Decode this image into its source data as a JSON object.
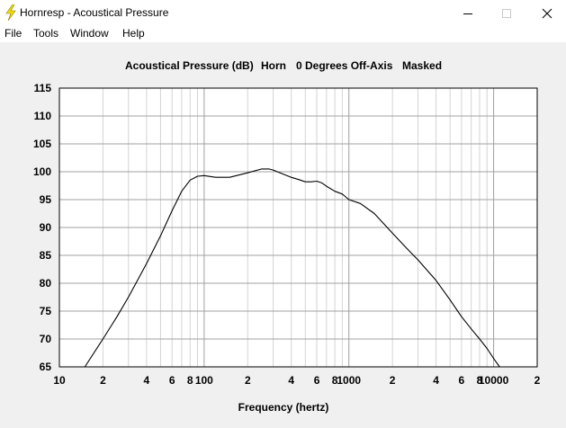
{
  "window": {
    "title": "Hornresp - Acoustical Pressure",
    "icon": "lightning-bolt-icon",
    "controls": [
      "minimize-icon",
      "maximize-icon",
      "close-icon"
    ]
  },
  "menu": {
    "items": [
      "File",
      "Tools",
      "Window",
      "Help"
    ]
  },
  "header": {
    "quantity": "Acoustical Pressure (dB)",
    "source": "Horn",
    "angle": "0 Degrees Off-Axis",
    "mode": "Masked"
  },
  "colors": {
    "background": "#f0f0f0",
    "plot_area": "#ffffff",
    "major_grid": "#a0a0a0",
    "minor_grid": "#d4d4d4",
    "trace": "#000000"
  },
  "chart_data": {
    "type": "line",
    "title": "Acoustical Pressure (dB)",
    "xlabel": "Frequency (hertz)",
    "ylabel": "",
    "xscale": "log",
    "xlim": [
      10,
      20000
    ],
    "ylim": [
      65,
      115
    ],
    "grid": true,
    "y_ticks": [
      "115",
      "110",
      "105",
      "100",
      "95",
      "90",
      "85",
      "80",
      "75",
      "70",
      "65"
    ],
    "x_ticks": [
      {
        "value": 10,
        "label": "10"
      },
      {
        "value": 20,
        "label": "2"
      },
      {
        "value": 40,
        "label": "4"
      },
      {
        "value": 60,
        "label": "6"
      },
      {
        "value": 80,
        "label": "8"
      },
      {
        "value": 100,
        "label": "100"
      },
      {
        "value": 200,
        "label": "2"
      },
      {
        "value": 400,
        "label": "4"
      },
      {
        "value": 600,
        "label": "6"
      },
      {
        "value": 800,
        "label": "8"
      },
      {
        "value": 1000,
        "label": "1000"
      },
      {
        "value": 2000,
        "label": "2"
      },
      {
        "value": 4000,
        "label": "4"
      },
      {
        "value": 6000,
        "label": "6"
      },
      {
        "value": 8000,
        "label": "8"
      },
      {
        "value": 10000,
        "label": "10000"
      },
      {
        "value": 20000,
        "label": "2"
      }
    ],
    "series": [
      {
        "x": [
          15,
          20,
          25,
          30,
          40,
          50,
          60,
          70,
          80,
          90,
          100,
          120,
          150,
          200,
          250,
          280,
          300,
          350,
          400,
          450,
          500,
          550,
          600,
          650,
          700,
          800,
          900,
          1000,
          1200,
          1500,
          2000,
          2500,
          3000,
          4000,
          5000,
          6000,
          7000,
          8000,
          9000,
          10000,
          11000
        ],
        "y": [
          65.0,
          70.0,
          74.0,
          77.5,
          83.5,
          88.5,
          93.0,
          96.5,
          98.5,
          99.2,
          99.3,
          99.0,
          99.0,
          99.8,
          100.5,
          100.5,
          100.3,
          99.6,
          99.0,
          98.6,
          98.2,
          98.2,
          98.3,
          98.0,
          97.4,
          96.5,
          96.0,
          95.0,
          94.3,
          92.5,
          89.0,
          86.3,
          84.2,
          80.5,
          77.0,
          74.0,
          71.8,
          70.0,
          68.3,
          66.5,
          65.0
        ]
      }
    ]
  }
}
